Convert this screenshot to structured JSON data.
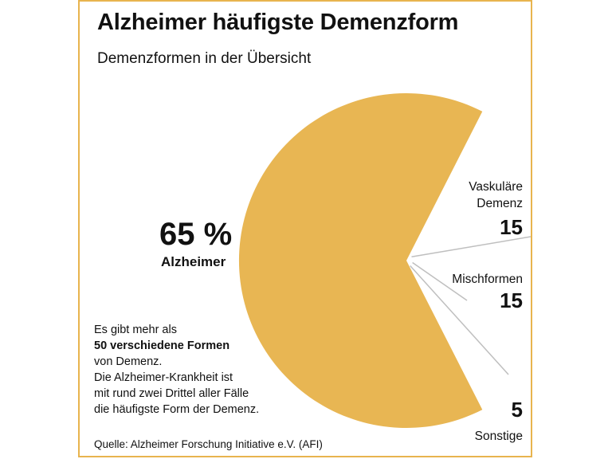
{
  "title": "Alzheimer häufigste Demenzform",
  "subtitle": "Demenzformen in der Übersicht",
  "colors": {
    "slice": "#e8b653",
    "frame": "#e8b44e",
    "leader": "#bfbfbf"
  },
  "chart_data": {
    "type": "pie",
    "unit": "%",
    "slices": [
      {
        "label": "Alzheimer",
        "value": 65,
        "display": "65 %",
        "exploded": false
      },
      {
        "label_lines": [
          "Vaskuläre",
          "Demenz"
        ],
        "value": 15,
        "display": "15",
        "exploded": true
      },
      {
        "label": "Mischformen",
        "value": 15,
        "display": "15",
        "exploded": true
      },
      {
        "label": "Sonstige",
        "value": 5,
        "display": "5",
        "exploded": true
      }
    ]
  },
  "note": {
    "line1": "Es gibt mehr als",
    "line2_bold": "50 verschiedene Formen",
    "line3": "von Demenz.",
    "line4": "Die Alzheimer-Krankheit ist",
    "line5": "mit rund zwei Drittel aller Fälle",
    "line6": "die häufigste Form der Demenz."
  },
  "source": "Quelle: Alzheimer Forschung Initiative e.V. (AFI)"
}
